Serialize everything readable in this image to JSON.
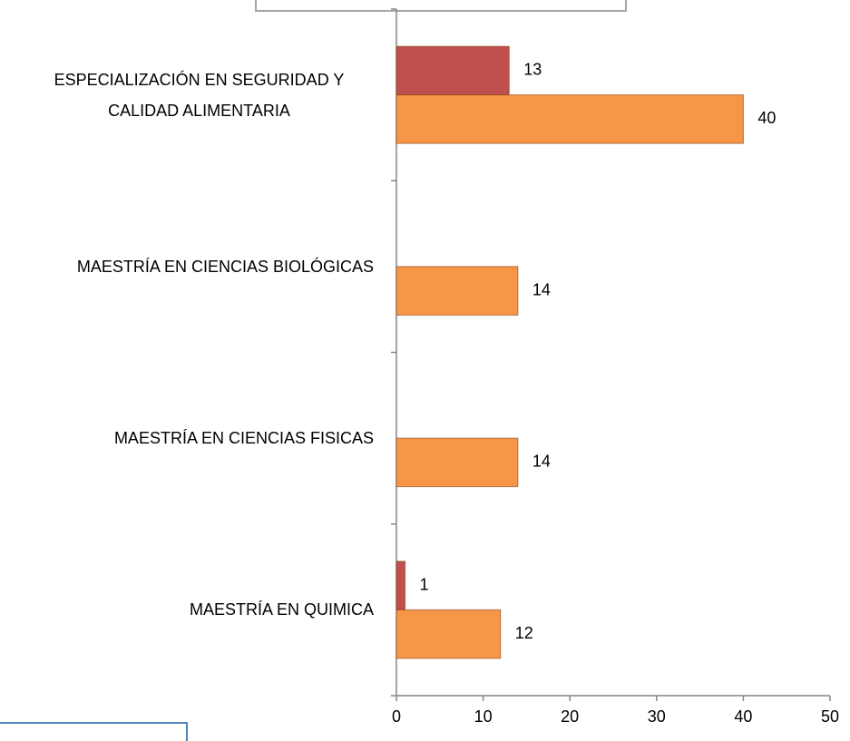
{
  "chart_data": {
    "type": "bar",
    "orientation": "horizontal",
    "categories": [
      "MAESTRÍA EN QUIMICA",
      "MAESTRÍA EN CIENCIAS FISICAS",
      "MAESTRÍA EN CIENCIAS BIOLÓGICAS",
      "ESPECIALIZACIÓN EN SEGURIDAD Y CALIDAD ALIMENTARIA"
    ],
    "series": [
      {
        "color": "#c0504d",
        "values": [
          1,
          null,
          null,
          13
        ]
      },
      {
        "color": "#f79646",
        "values": [
          12,
          14,
          14,
          40
        ]
      }
    ],
    "xlim": [
      0,
      50
    ],
    "xticks": [
      0,
      10,
      20,
      30,
      40,
      50
    ]
  }
}
